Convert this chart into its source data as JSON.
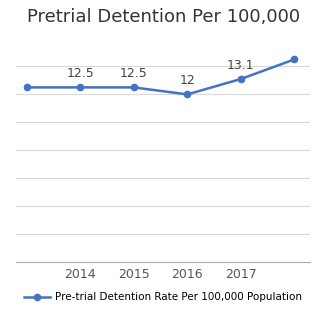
{
  "title": "Pretrial Detention Per 100,000",
  "x_values": [
    2013,
    2014,
    2015,
    2016,
    2017,
    2018
  ],
  "y_values": [
    12.5,
    12.5,
    12.5,
    12.0,
    13.1,
    14.5
  ],
  "data_labels": [
    "",
    "12.5",
    "12.5",
    "12",
    "13.1",
    ""
  ],
  "label_offsets_x": [
    0,
    0,
    0,
    0,
    0,
    0
  ],
  "label_offsets_y": [
    0,
    0.5,
    0.5,
    0.5,
    0.5,
    0
  ],
  "line_color": "#4472C4",
  "marker_color": "#4472C4",
  "legend_label": "Pre-trial Detention Rate Per 100,000 Population",
  "xlim": [
    2012.8,
    2018.3
  ],
  "ylim": [
    0,
    16
  ],
  "xticks": [
    2014,
    2015,
    2016,
    2017
  ],
  "grid_yticks": [
    2,
    4,
    6,
    8,
    10,
    12,
    14
  ],
  "grid_color": "#d9d9d9",
  "background_color": "#ffffff",
  "title_fontsize": 13,
  "label_fontsize": 9,
  "tick_fontsize": 9,
  "legend_fontsize": 7.5
}
